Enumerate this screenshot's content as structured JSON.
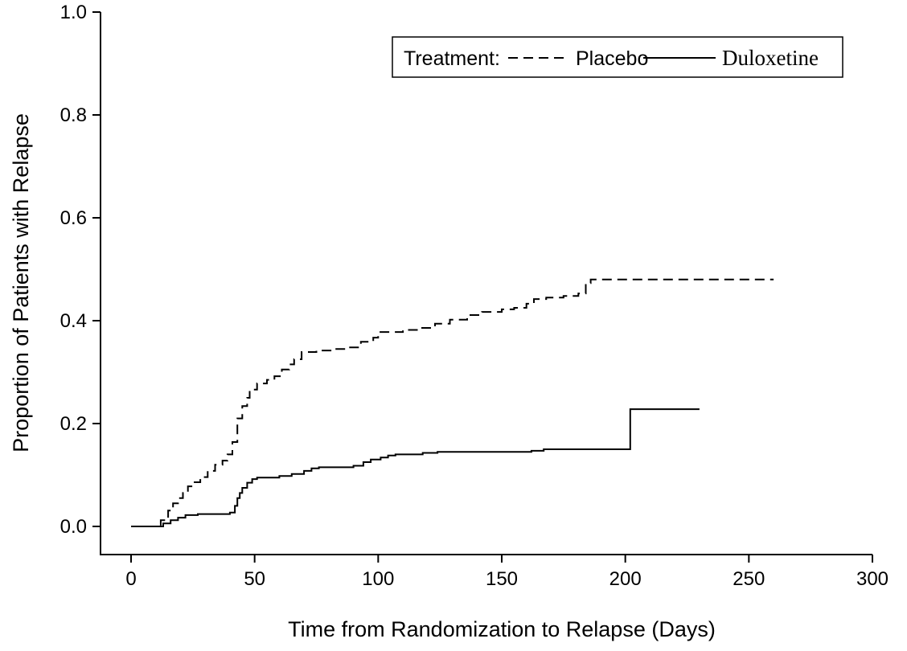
{
  "figure": {
    "background_color": "#ffffff",
    "foreground_color": "#000000"
  },
  "chart_data": {
    "type": "line",
    "subtype": "kaplan-meier-step",
    "title": "",
    "xlabel": "Time from Randomization to Relapse (Days)",
    "ylabel": "Proportion of Patients with Relapse",
    "xlim": [
      0,
      300
    ],
    "ylim": [
      0.0,
      1.0
    ],
    "grid": false,
    "x_ticks": {
      "values": [
        0,
        50,
        100,
        150,
        200,
        250,
        300
      ],
      "labels": [
        "0",
        "50",
        "100",
        "150",
        "200",
        "250",
        "300"
      ]
    },
    "y_ticks": {
      "values": [
        0.0,
        0.2,
        0.4,
        0.6,
        0.8,
        1.0
      ],
      "labels": [
        "0.0",
        "0.2",
        "0.4",
        "0.6",
        "0.8",
        "1.0"
      ]
    },
    "legend": {
      "title": "Treatment:",
      "position": "top-right-inside",
      "entries": [
        {
          "label": "Placebo",
          "line_style": "dashed"
        },
        {
          "label": "Duloxetine",
          "line_style": "solid"
        }
      ]
    },
    "series": [
      {
        "name": "Placebo",
        "style": "dashed",
        "points": [
          [
            0,
            0
          ],
          [
            12,
            0.012
          ],
          [
            15,
            0.031
          ],
          [
            17,
            0.045
          ],
          [
            19,
            0.055
          ],
          [
            21,
            0.065
          ],
          [
            23,
            0.078
          ],
          [
            25,
            0.086
          ],
          [
            28,
            0.096
          ],
          [
            31,
            0.108
          ],
          [
            34,
            0.12
          ],
          [
            37,
            0.128
          ],
          [
            39,
            0.14
          ],
          [
            41,
            0.164
          ],
          [
            43,
            0.21
          ],
          [
            45,
            0.234
          ],
          [
            47,
            0.25
          ],
          [
            48,
            0.266
          ],
          [
            51,
            0.278
          ],
          [
            55,
            0.285
          ],
          [
            58,
            0.292
          ],
          [
            61,
            0.305
          ],
          [
            64,
            0.315
          ],
          [
            66,
            0.325
          ],
          [
            69,
            0.339
          ],
          [
            75,
            0.342
          ],
          [
            82,
            0.345
          ],
          [
            87,
            0.348
          ],
          [
            93,
            0.359
          ],
          [
            98,
            0.367
          ],
          [
            100,
            0.378
          ],
          [
            110,
            0.382
          ],
          [
            116,
            0.386
          ],
          [
            123,
            0.394
          ],
          [
            129,
            0.402
          ],
          [
            136,
            0.411
          ],
          [
            142,
            0.417
          ],
          [
            150,
            0.422
          ],
          [
            155,
            0.425
          ],
          [
            160,
            0.433
          ],
          [
            163,
            0.442
          ],
          [
            168,
            0.445
          ],
          [
            175,
            0.448
          ],
          [
            181,
            0.453
          ],
          [
            184,
            0.473
          ],
          [
            186,
            0.48
          ],
          [
            260,
            0.48
          ]
        ]
      },
      {
        "name": "Duloxetine",
        "style": "solid",
        "points": [
          [
            0,
            0
          ],
          [
            13,
            0.006
          ],
          [
            16,
            0.012
          ],
          [
            19,
            0.017
          ],
          [
            22,
            0.022
          ],
          [
            27,
            0.024
          ],
          [
            40,
            0.027
          ],
          [
            42,
            0.04
          ],
          [
            43,
            0.055
          ],
          [
            44,
            0.065
          ],
          [
            45,
            0.075
          ],
          [
            47,
            0.085
          ],
          [
            49,
            0.092
          ],
          [
            51,
            0.095
          ],
          [
            60,
            0.098
          ],
          [
            65,
            0.102
          ],
          [
            70,
            0.108
          ],
          [
            73,
            0.113
          ],
          [
            76,
            0.115
          ],
          [
            90,
            0.118
          ],
          [
            94,
            0.125
          ],
          [
            97,
            0.13
          ],
          [
            101,
            0.134
          ],
          [
            104,
            0.138
          ],
          [
            107,
            0.14
          ],
          [
            118,
            0.143
          ],
          [
            124,
            0.145
          ],
          [
            162,
            0.147
          ],
          [
            167,
            0.15
          ],
          [
            201,
            0.15
          ],
          [
            202,
            0.228
          ],
          [
            230,
            0.228
          ]
        ]
      }
    ]
  }
}
